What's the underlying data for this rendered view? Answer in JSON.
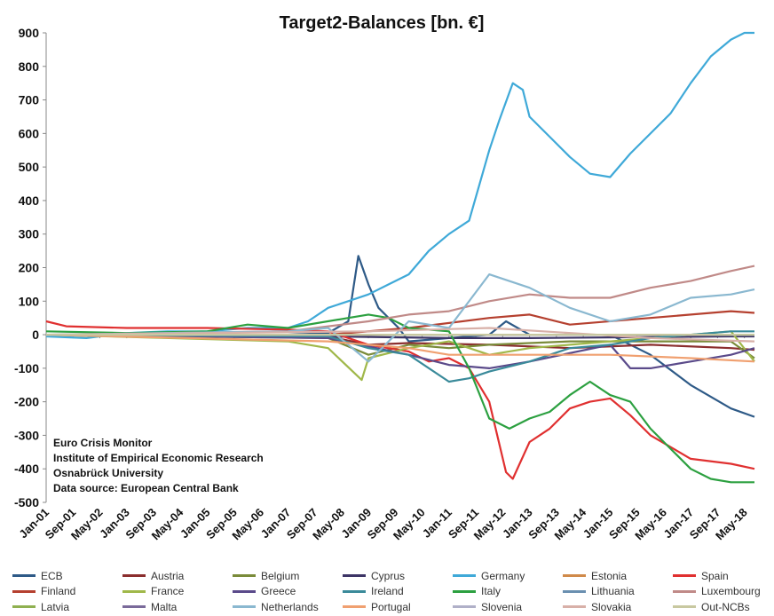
{
  "chart_data": {
    "type": "line",
    "title": "Target2-Balances [bn. €]",
    "xlabel": "",
    "ylabel": "",
    "ylim": [
      -500,
      900
    ],
    "yticks": [
      900,
      800,
      700,
      600,
      500,
      400,
      300,
      200,
      100,
      0,
      -100,
      -200,
      -300,
      -400,
      -500
    ],
    "x_ticks": [
      "Jan-01",
      "Sep-01",
      "May-02",
      "Jan-03",
      "Sep-03",
      "May-04",
      "Jan-05",
      "Sep-05",
      "May-06",
      "Jan-07",
      "Sep-07",
      "May-08",
      "Jan-09",
      "Sep-09",
      "May-10",
      "Jan-11",
      "Sep-11",
      "May-12",
      "Jan-13",
      "Sep-13",
      "May-14",
      "Jan-15",
      "Sep-15",
      "May-16",
      "Jan-17",
      "Sep-17",
      "May-18"
    ],
    "x_range": [
      "Jan-01",
      "Aug-18"
    ],
    "series": [
      {
        "name": "ECB",
        "color": "#2e5a87",
        "points": [
          [
            "Jan-01",
            0
          ],
          [
            "Jan-07",
            0
          ],
          [
            "Jan-08",
            5
          ],
          [
            "Jul-08",
            40
          ],
          [
            "Oct-08",
            235
          ],
          [
            "Jan-09",
            150
          ],
          [
            "Apr-09",
            80
          ],
          [
            "Oct-09",
            20
          ],
          [
            "Jan-10",
            -20
          ],
          [
            "Jan-11",
            -10
          ],
          [
            "Jan-12",
            0
          ],
          [
            "Jun-12",
            40
          ],
          [
            "Jan-13",
            0
          ],
          [
            "Jan-15",
            0
          ],
          [
            "Jan-16",
            -60
          ],
          [
            "Jan-17",
            -150
          ],
          [
            "Jan-18",
            -220
          ],
          [
            "Aug-18",
            -245
          ]
        ]
      },
      {
        "name": "Austria",
        "color": "#8b2e2e",
        "points": [
          [
            "Jan-01",
            0
          ],
          [
            "Jan-08",
            -5
          ],
          [
            "Jan-09",
            -30
          ],
          [
            "Jan-10",
            -25
          ],
          [
            "Jan-12",
            -30
          ],
          [
            "Jan-14",
            -40
          ],
          [
            "Jan-16",
            -30
          ],
          [
            "Jan-18",
            -40
          ],
          [
            "Aug-18",
            -45
          ]
        ]
      },
      {
        "name": "Belgium",
        "color": "#7a8b3a",
        "points": [
          [
            "Jan-01",
            0
          ],
          [
            "Jan-08",
            -10
          ],
          [
            "Jan-09",
            -60
          ],
          [
            "Jan-10",
            -30
          ],
          [
            "Jan-11",
            -40
          ],
          [
            "Jan-12",
            -30
          ],
          [
            "Jan-14",
            -20
          ],
          [
            "Jan-16",
            -20
          ],
          [
            "Jan-18",
            -20
          ],
          [
            "Aug-18",
            -70
          ]
        ]
      },
      {
        "name": "Cyprus",
        "color": "#3d3566",
        "points": [
          [
            "Jan-01",
            0
          ],
          [
            "Jan-08",
            -5
          ],
          [
            "Jan-11",
            -10
          ],
          [
            "Jan-13",
            -10
          ],
          [
            "Jan-18",
            -5
          ],
          [
            "Aug-18",
            -5
          ]
        ]
      },
      {
        "name": "Germany",
        "color": "#3fa9d8",
        "points": [
          [
            "Jan-01",
            -5
          ],
          [
            "Jan-02",
            -10
          ],
          [
            "Jan-03",
            5
          ],
          [
            "Jan-04",
            10
          ],
          [
            "Jan-05",
            10
          ],
          [
            "Jan-06",
            20
          ],
          [
            "Jan-07",
            20
          ],
          [
            "Jul-07",
            40
          ],
          [
            "Jan-08",
            80
          ],
          [
            "Jul-08",
            100
          ],
          [
            "Jan-09",
            120
          ],
          [
            "Jul-09",
            150
          ],
          [
            "Jan-10",
            180
          ],
          [
            "Jul-10",
            250
          ],
          [
            "Jan-11",
            300
          ],
          [
            "Jul-11",
            340
          ],
          [
            "Jan-12",
            550
          ],
          [
            "Apr-12",
            640
          ],
          [
            "Aug-12",
            750
          ],
          [
            "Nov-12",
            730
          ],
          [
            "Jan-13",
            650
          ],
          [
            "Jul-13",
            590
          ],
          [
            "Jan-14",
            530
          ],
          [
            "Jul-14",
            480
          ],
          [
            "Jan-15",
            470
          ],
          [
            "Jul-15",
            540
          ],
          [
            "Jan-16",
            600
          ],
          [
            "Jul-16",
            660
          ],
          [
            "Jan-17",
            750
          ],
          [
            "Jul-17",
            830
          ],
          [
            "Jan-18",
            880
          ],
          [
            "May-18",
            900
          ],
          [
            "Aug-18",
            900
          ]
        ]
      },
      {
        "name": "Estonia",
        "color": "#d08a4a",
        "points": [
          [
            "Jan-01",
            0
          ],
          [
            "Aug-18",
            0
          ]
        ]
      },
      {
        "name": "Spain",
        "color": "#e03030",
        "points": [
          [
            "Jan-01",
            40
          ],
          [
            "Jul-01",
            25
          ],
          [
            "Jan-03",
            20
          ],
          [
            "Jan-05",
            20
          ],
          [
            "Jan-07",
            15
          ],
          [
            "Jan-08",
            10
          ],
          [
            "Jan-09",
            -30
          ],
          [
            "Jan-10",
            -50
          ],
          [
            "Jul-10",
            -80
          ],
          [
            "Jan-11",
            -70
          ],
          [
            "Jul-11",
            -100
          ],
          [
            "Jan-12",
            -200
          ],
          [
            "Jun-12",
            -410
          ],
          [
            "Aug-12",
            -430
          ],
          [
            "Jan-13",
            -320
          ],
          [
            "Jul-13",
            -280
          ],
          [
            "Jan-14",
            -220
          ],
          [
            "Jul-14",
            -200
          ],
          [
            "Jan-15",
            -190
          ],
          [
            "Jul-15",
            -240
          ],
          [
            "Jan-16",
            -300
          ],
          [
            "Jan-17",
            -370
          ],
          [
            "Jan-18",
            -385
          ],
          [
            "Aug-18",
            -400
          ]
        ]
      },
      {
        "name": "Finland",
        "color": "#b5402f",
        "points": [
          [
            "Jan-01",
            0
          ],
          [
            "Jan-08",
            0
          ],
          [
            "Jan-10",
            20
          ],
          [
            "Jan-12",
            50
          ],
          [
            "Jan-13",
            60
          ],
          [
            "Jan-14",
            30
          ],
          [
            "Jan-16",
            50
          ],
          [
            "Jan-18",
            70
          ],
          [
            "Aug-18",
            65
          ]
        ]
      },
      {
        "name": "France",
        "color": "#a0b84a",
        "points": [
          [
            "Jan-01",
            0
          ],
          [
            "Jan-07",
            -20
          ],
          [
            "Jan-08",
            -40
          ],
          [
            "Nov-08",
            -135
          ],
          [
            "Jan-09",
            -70
          ],
          [
            "Jan-10",
            -40
          ],
          [
            "Jan-11",
            -20
          ],
          [
            "Jan-12",
            -60
          ],
          [
            "Jan-13",
            -40
          ],
          [
            "Jan-14",
            -30
          ],
          [
            "Jan-16",
            -10
          ],
          [
            "Jan-18",
            10
          ],
          [
            "Aug-18",
            -80
          ]
        ]
      },
      {
        "name": "Greece",
        "color": "#5a4a8a",
        "points": [
          [
            "Jan-01",
            0
          ],
          [
            "Jan-08",
            -10
          ],
          [
            "Jan-10",
            -60
          ],
          [
            "Jan-11",
            -90
          ],
          [
            "Jan-12",
            -100
          ],
          [
            "Jan-13",
            -80
          ],
          [
            "Jan-15",
            -30
          ],
          [
            "Jul-15",
            -100
          ],
          [
            "Jan-16",
            -100
          ],
          [
            "Jan-17",
            -80
          ],
          [
            "Jan-18",
            -60
          ],
          [
            "Aug-18",
            -40
          ]
        ]
      },
      {
        "name": "Ireland",
        "color": "#3a8a9a",
        "points": [
          [
            "Jan-01",
            0
          ],
          [
            "Jan-08",
            -5
          ],
          [
            "Jan-09",
            -40
          ],
          [
            "Jan-10",
            -60
          ],
          [
            "Jan-11",
            -140
          ],
          [
            "Jul-11",
            -130
          ],
          [
            "Jan-12",
            -110
          ],
          [
            "Jan-13",
            -80
          ],
          [
            "Jan-14",
            -40
          ],
          [
            "Jan-15",
            -30
          ],
          [
            "Jan-16",
            -10
          ],
          [
            "Jan-18",
            10
          ],
          [
            "Aug-18",
            10
          ]
        ]
      },
      {
        "name": "Italy",
        "color": "#2ca040",
        "points": [
          [
            "Jan-01",
            10
          ],
          [
            "Jan-03",
            5
          ],
          [
            "Jan-05",
            10
          ],
          [
            "Jan-06",
            30
          ],
          [
            "Jan-07",
            20
          ],
          [
            "Jul-08",
            50
          ],
          [
            "Jan-09",
            60
          ],
          [
            "Jul-09",
            50
          ],
          [
            "Jan-10",
            20
          ],
          [
            "Jan-11",
            10
          ],
          [
            "Jul-11",
            -100
          ],
          [
            "Jan-12",
            -250
          ],
          [
            "Jul-12",
            -280
          ],
          [
            "Jan-13",
            -250
          ],
          [
            "Jul-13",
            -230
          ],
          [
            "Jan-14",
            -180
          ],
          [
            "Jul-14",
            -140
          ],
          [
            "Jan-15",
            -180
          ],
          [
            "Jul-15",
            -200
          ],
          [
            "Jan-16",
            -280
          ],
          [
            "Jan-17",
            -400
          ],
          [
            "Jul-17",
            -430
          ],
          [
            "Jan-18",
            -440
          ],
          [
            "Aug-18",
            -440
          ]
        ]
      },
      {
        "name": "Lithuania",
        "color": "#6a8fb0",
        "points": [
          [
            "Jan-01",
            0
          ],
          [
            "Aug-18",
            0
          ]
        ]
      },
      {
        "name": "Luxembourg",
        "color": "#c08a88",
        "points": [
          [
            "Jan-01",
            0
          ],
          [
            "Jan-07",
            10
          ],
          [
            "Jan-09",
            40
          ],
          [
            "Jan-10",
            60
          ],
          [
            "Jan-11",
            70
          ],
          [
            "Jan-12",
            100
          ],
          [
            "Jan-13",
            120
          ],
          [
            "Jan-14",
            110
          ],
          [
            "Jan-15",
            110
          ],
          [
            "Jan-16",
            140
          ],
          [
            "Jan-17",
            160
          ],
          [
            "Jan-18",
            190
          ],
          [
            "Aug-18",
            205
          ]
        ]
      },
      {
        "name": "Latvia",
        "color": "#8fb050",
        "points": [
          [
            "Jan-01",
            0
          ],
          [
            "Aug-18",
            0
          ]
        ]
      },
      {
        "name": "Malta",
        "color": "#7a6a9a",
        "points": [
          [
            "Jan-01",
            0
          ],
          [
            "Aug-18",
            0
          ]
        ]
      },
      {
        "name": "Netherlands",
        "color": "#8ab8d0",
        "points": [
          [
            "Jan-01",
            0
          ],
          [
            "Jan-07",
            10
          ],
          [
            "Jan-08",
            20
          ],
          [
            "Jan-09",
            -80
          ],
          [
            "Jan-10",
            40
          ],
          [
            "Jan-11",
            20
          ],
          [
            "Jan-12",
            180
          ],
          [
            "Jan-13",
            140
          ],
          [
            "Jan-14",
            80
          ],
          [
            "Jan-15",
            40
          ],
          [
            "Jan-16",
            60
          ],
          [
            "Jan-17",
            110
          ],
          [
            "Jan-18",
            120
          ],
          [
            "Aug-18",
            135
          ]
        ]
      },
      {
        "name": "Portugal",
        "color": "#f0a070",
        "points": [
          [
            "Jan-01",
            0
          ],
          [
            "Jan-08",
            -20
          ],
          [
            "Jan-10",
            -40
          ],
          [
            "Jan-11",
            -60
          ],
          [
            "Jan-12",
            -60
          ],
          [
            "Jan-13",
            -60
          ],
          [
            "Jan-15",
            -60
          ],
          [
            "Jan-17",
            -70
          ],
          [
            "Aug-18",
            -80
          ]
        ]
      },
      {
        "name": "Slovenia",
        "color": "#b0b0c8",
        "points": [
          [
            "Jan-01",
            0
          ],
          [
            "Aug-18",
            0
          ]
        ]
      },
      {
        "name": "Slovakia",
        "color": "#d8b0a8",
        "points": [
          [
            "Jan-01",
            0
          ],
          [
            "Jan-09",
            10
          ],
          [
            "Jan-12",
            20
          ],
          [
            "Jan-16",
            -10
          ],
          [
            "Aug-18",
            -20
          ]
        ]
      },
      {
        "name": "Out-NCBs",
        "color": "#c8c8a0",
        "points": [
          [
            "Jan-01",
            0
          ],
          [
            "Aug-18",
            0
          ]
        ]
      }
    ],
    "annotations": [
      "Euro Crisis Monitor",
      "Institute of Empirical Economic Research",
      "Osnabrück University",
      "Data source: European Central Bank"
    ],
    "legend_placement": "bottom",
    "grid": false
  }
}
